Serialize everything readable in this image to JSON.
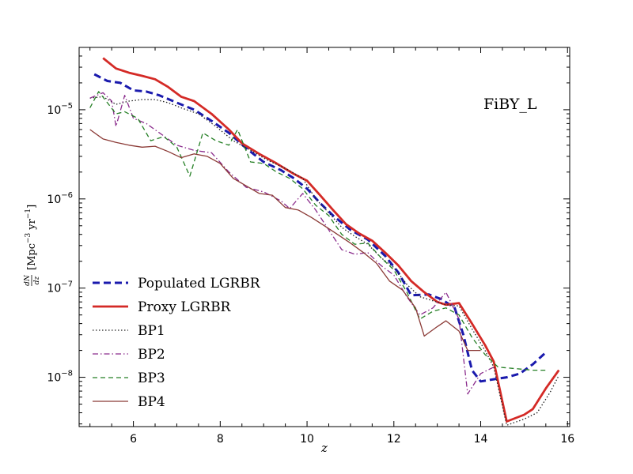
{
  "chart_data": {
    "type": "line",
    "annotation": "FiBY_L",
    "xlabel": "z",
    "ylabel": {
      "main": "dN/dz",
      "frac_num": "dN",
      "frac_den": "dz",
      "unit_open": "[Mpc",
      "exp1": "−3",
      "unit_mid": "yr",
      "exp2": "−1",
      "unit_close": "]"
    },
    "xlim": [
      4.75,
      16.05
    ],
    "ylim": [
      2.8e-09,
      5e-05
    ],
    "yscale": "log",
    "x_ticks": [
      {
        "value": 6,
        "label": "6"
      },
      {
        "value": 8,
        "label": "8"
      },
      {
        "value": 10,
        "label": "10"
      },
      {
        "value": 12,
        "label": "12"
      },
      {
        "value": 14,
        "label": "14"
      },
      {
        "value": 16,
        "label": "16"
      }
    ],
    "y_ticks": [
      {
        "value": 1e-08,
        "base": "10",
        "exp": "−8"
      },
      {
        "value": 1e-07,
        "base": "10",
        "exp": "−7"
      },
      {
        "value": 1e-06,
        "base": "10",
        "exp": "−6"
      },
      {
        "value": 1e-05,
        "base": "10",
        "exp": "−5"
      }
    ],
    "legend_position": "lower-left",
    "series": [
      {
        "name": "Populated LGRBR",
        "color": "#1a1aad",
        "dash": "9,5",
        "width": 3,
        "points": [
          [
            5.1,
            2.5e-05
          ],
          [
            5.4,
            2.1e-05
          ],
          [
            5.7,
            2e-05
          ],
          [
            6.0,
            1.65e-05
          ],
          [
            6.3,
            1.6e-05
          ],
          [
            6.6,
            1.45e-05
          ],
          [
            7.0,
            1.2e-05
          ],
          [
            7.4,
            1e-05
          ],
          [
            7.8,
            7.5e-06
          ],
          [
            8.2,
            5.5e-06
          ],
          [
            8.6,
            3.7e-06
          ],
          [
            9.0,
            2.6e-06
          ],
          [
            9.4,
            2.1e-06
          ],
          [
            9.7,
            1.7e-06
          ],
          [
            10.0,
            1.3e-06
          ],
          [
            10.3,
            9e-07
          ],
          [
            10.6,
            6.5e-07
          ],
          [
            11.0,
            4.5e-07
          ],
          [
            11.4,
            3.5e-07
          ],
          [
            11.8,
            2.3e-07
          ],
          [
            12.1,
            1.5e-07
          ],
          [
            12.4,
            8.3e-08
          ],
          [
            12.8,
            8.5e-08
          ],
          [
            13.1,
            7.5e-08
          ],
          [
            13.4,
            6e-08
          ],
          [
            13.6,
            3e-08
          ],
          [
            13.8,
            1.2e-08
          ],
          [
            14.0,
            9e-09
          ],
          [
            14.3,
            9.5e-09
          ],
          [
            14.6,
            1e-08
          ],
          [
            14.9,
            1.1e-08
          ],
          [
            15.2,
            1.4e-08
          ],
          [
            15.5,
            1.9e-08
          ]
        ]
      },
      {
        "name": "Proxy LGRBR",
        "color": "#d42a26",
        "dash": "",
        "width": 2.8,
        "points": [
          [
            5.3,
            3.8e-05
          ],
          [
            5.6,
            2.9e-05
          ],
          [
            5.9,
            2.6e-05
          ],
          [
            6.2,
            2.4e-05
          ],
          [
            6.5,
            2.2e-05
          ],
          [
            6.8,
            1.8e-05
          ],
          [
            7.1,
            1.4e-05
          ],
          [
            7.4,
            1.25e-05
          ],
          [
            7.8,
            9e-06
          ],
          [
            8.2,
            6e-06
          ],
          [
            8.5,
            4.2e-06
          ],
          [
            8.9,
            3.2e-06
          ],
          [
            9.3,
            2.5e-06
          ],
          [
            9.7,
            1.9e-06
          ],
          [
            10.0,
            1.6e-06
          ],
          [
            10.3,
            1.1e-06
          ],
          [
            10.6,
            7.5e-07
          ],
          [
            10.9,
            5.2e-07
          ],
          [
            11.2,
            4.1e-07
          ],
          [
            11.5,
            3.4e-07
          ],
          [
            11.8,
            2.5e-07
          ],
          [
            12.1,
            1.8e-07
          ],
          [
            12.4,
            1.2e-07
          ],
          [
            12.7,
            9e-08
          ],
          [
            13.0,
            7e-08
          ],
          [
            13.2,
            6.5e-08
          ],
          [
            13.5,
            6.8e-08
          ],
          [
            13.8,
            4e-08
          ],
          [
            14.1,
            2.3e-08
          ],
          [
            14.3,
            1.5e-08
          ],
          [
            14.6,
            3.2e-09
          ],
          [
            15.0,
            3.8e-09
          ],
          [
            15.2,
            4.4e-09
          ],
          [
            15.5,
            7.5e-09
          ],
          [
            15.8,
            1.2e-08
          ]
        ]
      },
      {
        "name": "BP1",
        "color": "#222222",
        "dash": "1.5,2.5",
        "width": 1.3,
        "points": [
          [
            5.0,
            1.35e-05
          ],
          [
            5.3,
            1.4e-05
          ],
          [
            5.6,
            1.15e-05
          ],
          [
            5.9,
            1.25e-05
          ],
          [
            6.2,
            1.3e-05
          ],
          [
            6.5,
            1.3e-05
          ],
          [
            6.8,
            1.2e-05
          ],
          [
            7.1,
            1.05e-05
          ],
          [
            7.5,
            9e-06
          ],
          [
            7.9,
            6.5e-06
          ],
          [
            8.3,
            4.5e-06
          ],
          [
            8.7,
            3.5e-06
          ],
          [
            9.1,
            2.7e-06
          ],
          [
            9.5,
            2.2e-06
          ],
          [
            9.9,
            1.7e-06
          ],
          [
            10.2,
            1e-06
          ],
          [
            10.5,
            7e-07
          ],
          [
            10.8,
            4.8e-07
          ],
          [
            11.1,
            3.8e-07
          ],
          [
            11.4,
            3.1e-07
          ],
          [
            11.7,
            2.2e-07
          ],
          [
            12.0,
            1.7e-07
          ],
          [
            12.3,
            1.1e-07
          ],
          [
            12.6,
            8e-08
          ],
          [
            12.9,
            7.2e-08
          ],
          [
            13.2,
            6.5e-08
          ],
          [
            13.5,
            6.3e-08
          ],
          [
            13.8,
            3.5e-08
          ],
          [
            14.1,
            2e-08
          ],
          [
            14.3,
            1.3e-08
          ],
          [
            14.6,
            2.9e-09
          ],
          [
            15.0,
            3.4e-09
          ],
          [
            15.3,
            4e-09
          ],
          [
            15.6,
            6.8e-09
          ],
          [
            15.8,
            1.05e-08
          ]
        ]
      },
      {
        "name": "BP2",
        "color": "#8a2b8c",
        "dash": "7,3,1.5,3",
        "width": 1.3,
        "points": [
          [
            5.0,
            1.35e-05
          ],
          [
            5.3,
            1.55e-05
          ],
          [
            5.5,
            1.25e-05
          ],
          [
            5.6,
            6.5e-06
          ],
          [
            5.8,
            1.45e-05
          ],
          [
            6.0,
            8e-06
          ],
          [
            6.3,
            7e-06
          ],
          [
            6.6,
            5.5e-06
          ],
          [
            7.0,
            4e-06
          ],
          [
            7.4,
            3.5e-06
          ],
          [
            7.8,
            3.3e-06
          ],
          [
            8.2,
            2e-06
          ],
          [
            8.6,
            1.35e-06
          ],
          [
            9.0,
            1.2e-06
          ],
          [
            9.4,
            9.5e-07
          ],
          [
            9.6,
            7.8e-07
          ],
          [
            9.9,
            1.15e-06
          ],
          [
            10.2,
            7.5e-07
          ],
          [
            10.5,
            4.5e-07
          ],
          [
            10.8,
            2.7e-07
          ],
          [
            11.1,
            2.4e-07
          ],
          [
            11.4,
            2.5e-07
          ],
          [
            11.7,
            1.8e-07
          ],
          [
            12.0,
            1.4e-07
          ],
          [
            12.3,
            8e-08
          ],
          [
            12.6,
            5e-08
          ],
          [
            12.9,
            6e-08
          ],
          [
            13.2,
            9e-08
          ],
          [
            13.5,
            4.5e-08
          ],
          [
            13.7,
            6.5e-09
          ],
          [
            14.0,
            1.1e-08
          ],
          [
            14.3,
            1.3e-08
          ]
        ]
      },
      {
        "name": "BP3",
        "color": "#247f24",
        "dash": "6,4",
        "width": 1.3,
        "points": [
          [
            5.0,
            1.05e-05
          ],
          [
            5.2,
            1.6e-05
          ],
          [
            5.4,
            1.2e-05
          ],
          [
            5.6,
            9e-06
          ],
          [
            5.8,
            9.5e-06
          ],
          [
            6.1,
            8e-06
          ],
          [
            6.4,
            4.5e-06
          ],
          [
            6.7,
            5e-06
          ],
          [
            7.0,
            3.8e-06
          ],
          [
            7.3,
            1.8e-06
          ],
          [
            7.6,
            5.5e-06
          ],
          [
            7.9,
            4.5e-06
          ],
          [
            8.2,
            4e-06
          ],
          [
            8.4,
            6e-06
          ],
          [
            8.7,
            2.6e-06
          ],
          [
            9.0,
            2.5e-06
          ],
          [
            9.3,
            2e-06
          ],
          [
            9.6,
            1.7e-06
          ],
          [
            9.9,
            1.3e-06
          ],
          [
            10.2,
            8.5e-07
          ],
          [
            10.5,
            6.5e-07
          ],
          [
            10.8,
            4e-07
          ],
          [
            11.1,
            3.1e-07
          ],
          [
            11.4,
            3.2e-07
          ],
          [
            11.7,
            2.2e-07
          ],
          [
            12.0,
            1.6e-07
          ],
          [
            12.3,
            9e-08
          ],
          [
            12.6,
            4.5e-08
          ],
          [
            12.9,
            5.5e-08
          ],
          [
            13.2,
            6e-08
          ],
          [
            13.5,
            5e-08
          ],
          [
            13.8,
            2.8e-08
          ],
          [
            14.1,
            1.8e-08
          ],
          [
            14.4,
            1.3e-08
          ],
          [
            14.8,
            1.25e-08
          ],
          [
            15.2,
            1.2e-08
          ],
          [
            15.5,
            1.2e-08
          ]
        ]
      },
      {
        "name": "BP4",
        "color": "#8b3a36",
        "dash": "",
        "width": 1.3,
        "points": [
          [
            5.0,
            6e-06
          ],
          [
            5.3,
            4.7e-06
          ],
          [
            5.6,
            4.3e-06
          ],
          [
            5.9,
            4e-06
          ],
          [
            6.2,
            3.8e-06
          ],
          [
            6.5,
            3.9e-06
          ],
          [
            6.8,
            3.4e-06
          ],
          [
            7.1,
            2.9e-06
          ],
          [
            7.4,
            3.2e-06
          ],
          [
            7.7,
            3e-06
          ],
          [
            8.0,
            2.5e-06
          ],
          [
            8.3,
            1.7e-06
          ],
          [
            8.6,
            1.4e-06
          ],
          [
            8.9,
            1.15e-06
          ],
          [
            9.2,
            1.1e-06
          ],
          [
            9.5,
            8e-07
          ],
          [
            9.8,
            7.5e-07
          ],
          [
            10.1,
            6.2e-07
          ],
          [
            10.4,
            5e-07
          ],
          [
            10.7,
            4e-07
          ],
          [
            11.0,
            3.2e-07
          ],
          [
            11.3,
            2.5e-07
          ],
          [
            11.6,
            1.9e-07
          ],
          [
            11.9,
            1.2e-07
          ],
          [
            12.2,
            9.5e-08
          ],
          [
            12.5,
            6e-08
          ],
          [
            12.7,
            2.9e-08
          ],
          [
            13.0,
            3.7e-08
          ],
          [
            13.2,
            4.3e-08
          ],
          [
            13.5,
            3.3e-08
          ],
          [
            13.7,
            2e-08
          ],
          [
            14.0,
            2e-08
          ]
        ]
      }
    ]
  }
}
